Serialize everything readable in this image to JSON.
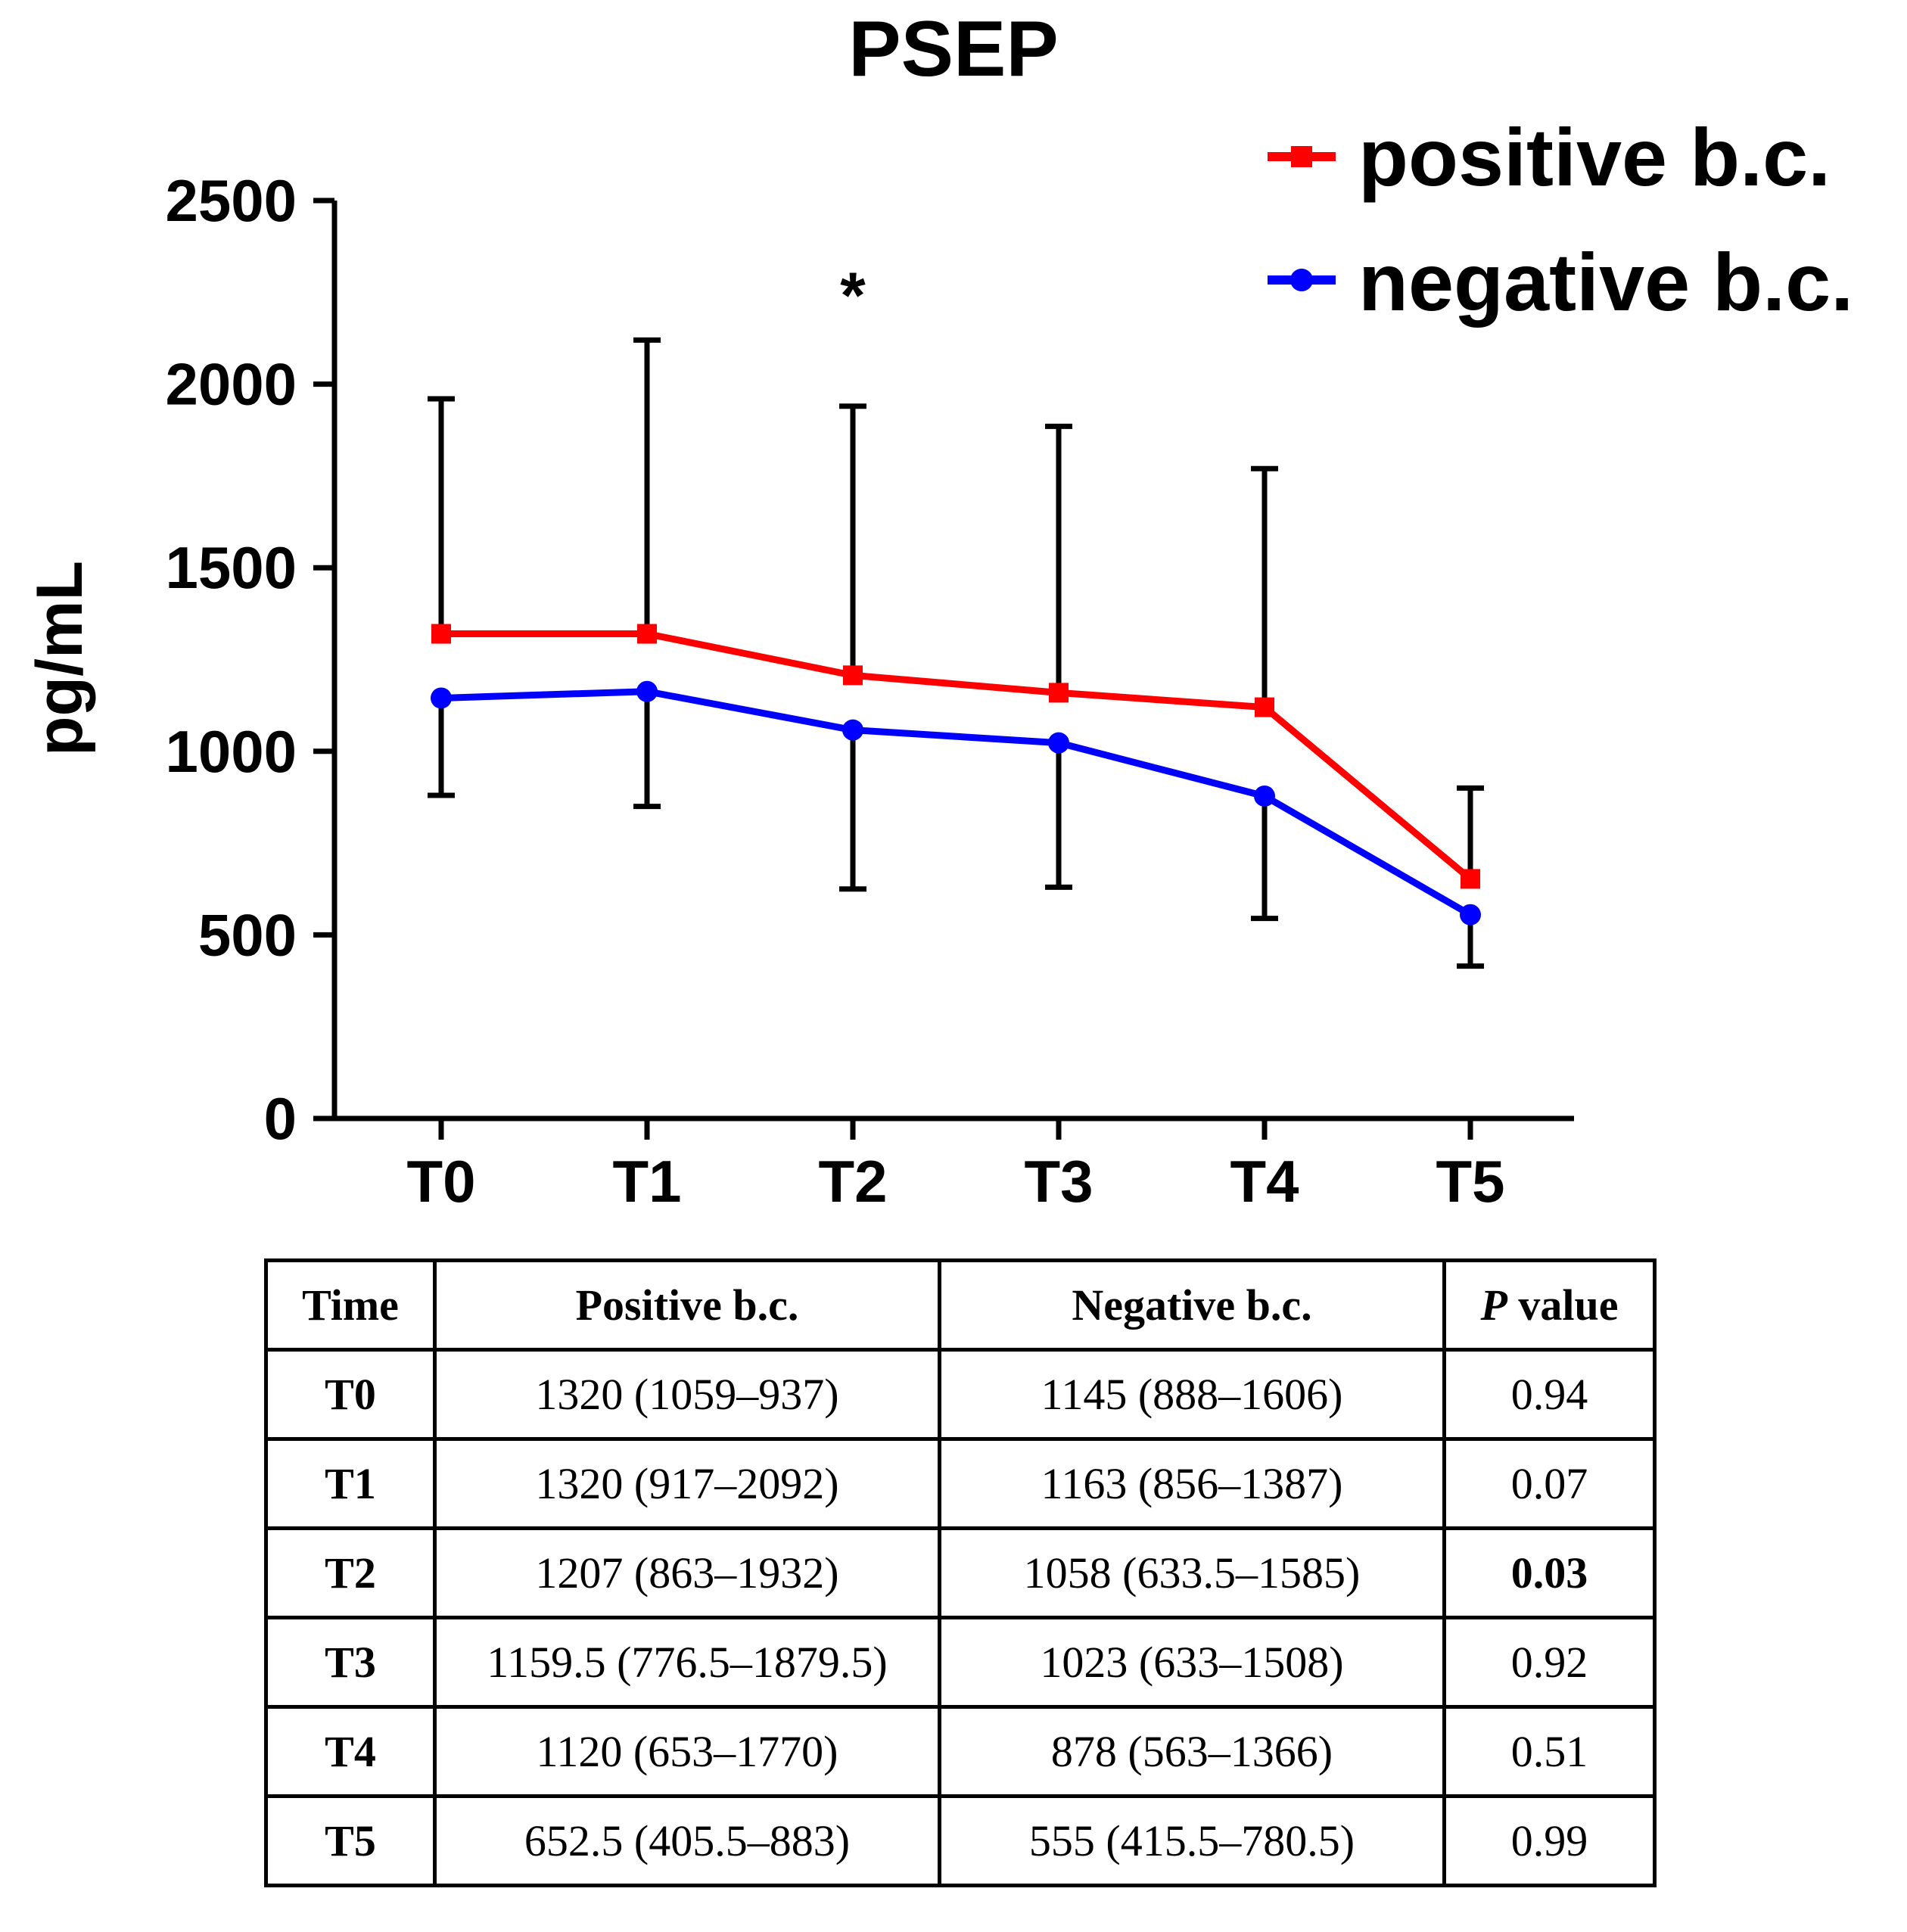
{
  "chart_data": {
    "type": "line",
    "title": "PSEP",
    "xlabel": "",
    "ylabel": "pg/mL",
    "categories": [
      "T0",
      "T1",
      "T2",
      "T3",
      "T4",
      "T5"
    ],
    "ylim": [
      0,
      2500
    ],
    "yticks": [
      0,
      500,
      1000,
      1500,
      2000,
      2500
    ],
    "series": [
      {
        "name": "positive b.c.",
        "color": "#ff0000",
        "marker": "square",
        "values": [
          1320,
          1320,
          1207,
          1159.5,
          1120,
          652.5
        ],
        "error_upper": [
          1960,
          2120,
          1940,
          1885,
          1770,
          900
        ]
      },
      {
        "name": "negative b.c.",
        "color": "#0000ff",
        "marker": "circle",
        "values": [
          1145,
          1163,
          1058,
          1023,
          878,
          555
        ],
        "error_lower": [
          880,
          850,
          625,
          630,
          545,
          415
        ]
      }
    ],
    "annotations": [
      {
        "category": "T2",
        "text": "*"
      }
    ],
    "legend_position": "top-right"
  },
  "table": {
    "headers": {
      "time": "Time",
      "positive": "Positive b.c.",
      "negative": "Negative b.c.",
      "p_italic": "P",
      "p_rest": " value"
    },
    "rows": [
      {
        "time": "T0",
        "positive": "1320 (1059–937)",
        "negative": "1145 (888–1606)",
        "p": "0.94"
      },
      {
        "time": "T1",
        "positive": "1320 (917–2092)",
        "negative": "1163 (856–1387)",
        "p": "0.07"
      },
      {
        "time": "T2",
        "positive": "1207 (863–1932)",
        "negative": "1058 (633.5–1585)",
        "p": "0.03"
      },
      {
        "time": "T3",
        "positive": "1159.5 (776.5–1879.5)",
        "negative": "1023 (633–1508)",
        "p": "0.92"
      },
      {
        "time": "T4",
        "positive": "1120 (653–1770)",
        "negative": "878 (563–1366)",
        "p": "0.51"
      },
      {
        "time": "T5",
        "positive": "652.5 (405.5–883)",
        "negative": "555 (415.5–780.5)",
        "p": "0.99"
      }
    ]
  }
}
